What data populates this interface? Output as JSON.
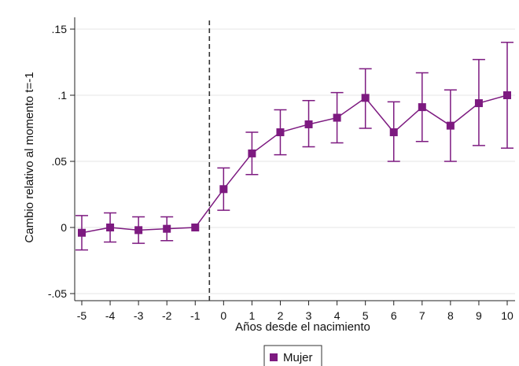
{
  "chart_data": {
    "type": "line",
    "xlabel": "Años desde el nacimiento",
    "ylabel": "Cambio relativo al momento t=-1",
    "x_ticks": [
      "-5",
      "-4",
      "-3",
      "-2",
      "-1",
      "0",
      "1",
      "2",
      "3",
      "4",
      "5",
      "6",
      "7",
      "8",
      "9",
      "10"
    ],
    "y_ticks": [
      {
        "value": 0.15,
        "label": ".15"
      },
      {
        "value": 0.1,
        "label": ".1"
      },
      {
        "value": 0.05,
        "label": ".05"
      },
      {
        "value": 0.0,
        "label": "0"
      },
      {
        "value": -0.05,
        "label": "-.05"
      }
    ],
    "ylim": [
      -0.055,
      0.155
    ],
    "xlim": [
      -5,
      10
    ],
    "grid": true,
    "reference_line": {
      "x": -0.5,
      "style": "dashed"
    },
    "legend_position": "bottom",
    "series": [
      {
        "name": "Mujer",
        "color": "#7d1a80",
        "marker": "square",
        "x": [
          -5,
          -4,
          -3,
          -2,
          -1,
          0,
          1,
          2,
          3,
          4,
          5,
          6,
          7,
          8,
          9,
          10
        ],
        "y": [
          -0.004,
          0.0,
          -0.002,
          -0.001,
          0.0,
          0.029,
          0.056,
          0.072,
          0.078,
          0.083,
          0.098,
          0.072,
          0.091,
          0.077,
          0.094,
          0.1
        ],
        "ci_low": [
          -0.017,
          -0.011,
          -0.012,
          -0.01,
          0.0,
          0.013,
          0.04,
          0.055,
          0.061,
          0.064,
          0.075,
          0.05,
          0.065,
          0.05,
          0.062,
          0.06
        ],
        "ci_high": [
          0.009,
          0.011,
          0.008,
          0.008,
          0.0,
          0.045,
          0.072,
          0.089,
          0.096,
          0.102,
          0.12,
          0.095,
          0.117,
          0.104,
          0.127,
          0.14
        ]
      }
    ]
  }
}
